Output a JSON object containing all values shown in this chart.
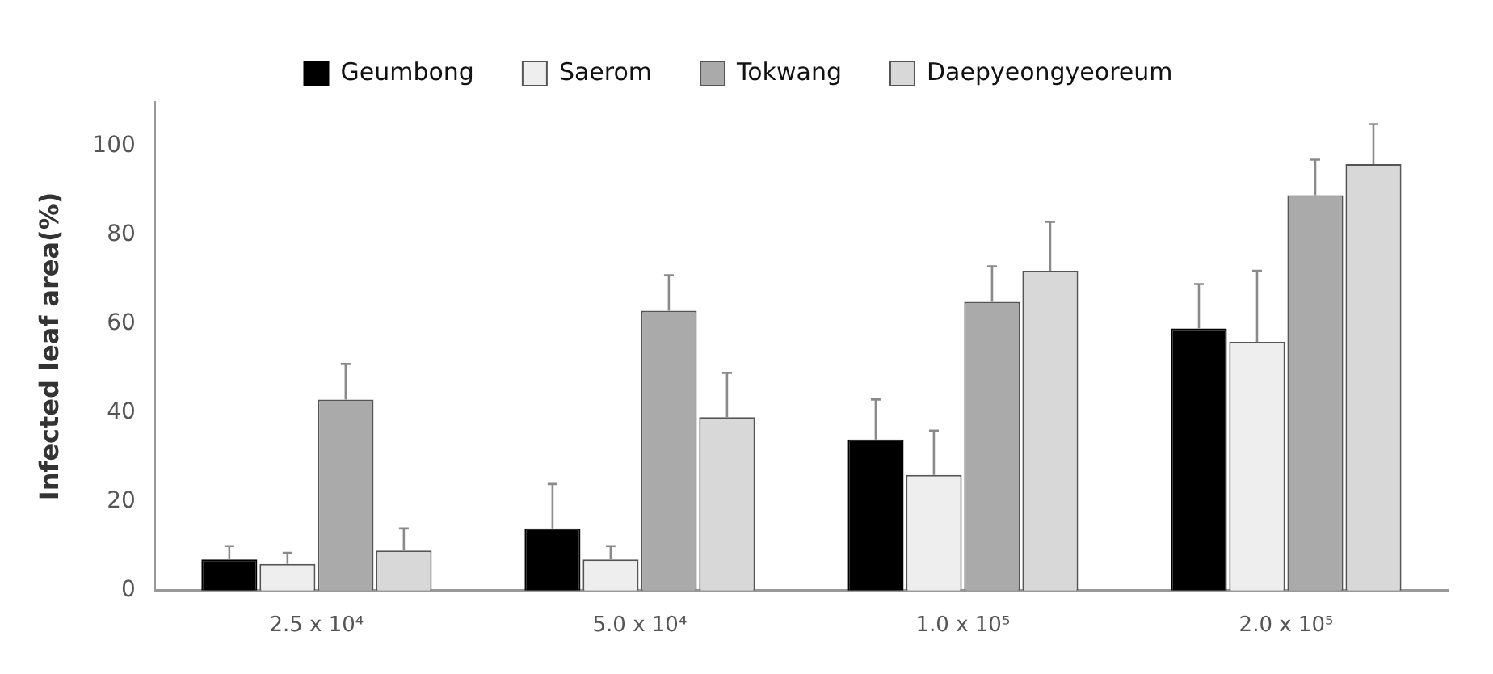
{
  "chart_data": {
    "type": "bar",
    "ylabel": "Infected leaf area(%)",
    "categories": [
      "2.5 x 10⁴",
      "5.0 x 10⁴",
      "1.0 x 10⁵",
      "2.0 x 10⁵"
    ],
    "series": [
      {
        "name": "Geumbong",
        "color": "#000000",
        "values": [
          7,
          14,
          34,
          59
        ],
        "errors": [
          [
            7,
            10
          ],
          [
            14,
            24
          ],
          [
            34,
            43
          ],
          [
            59,
            69
          ]
        ]
      },
      {
        "name": "Saerom",
        "color": "#eeeeee",
        "values": [
          6,
          7,
          26,
          56
        ],
        "errors": [
          [
            6,
            8.5
          ],
          [
            7,
            10
          ],
          [
            26,
            36
          ],
          [
            56,
            72
          ]
        ]
      },
      {
        "name": "Tokwang",
        "color": "#aaaaaa",
        "values": [
          43,
          63,
          65,
          89
        ],
        "errors": [
          [
            43,
            51
          ],
          [
            63,
            71
          ],
          [
            65,
            73
          ],
          [
            89,
            97
          ]
        ]
      },
      {
        "name": "Daepyeongyeoreum",
        "color": "#d8d8d8",
        "values": [
          9,
          39,
          72,
          96
        ],
        "errors": [
          [
            9,
            14
          ],
          [
            39,
            49
          ],
          [
            72,
            83
          ],
          [
            96,
            105
          ]
        ]
      }
    ],
    "ylim": [
      0,
      110
    ],
    "yticks": [
      0,
      20,
      40,
      60,
      80,
      100
    ],
    "grid": false,
    "legend": "top"
  }
}
